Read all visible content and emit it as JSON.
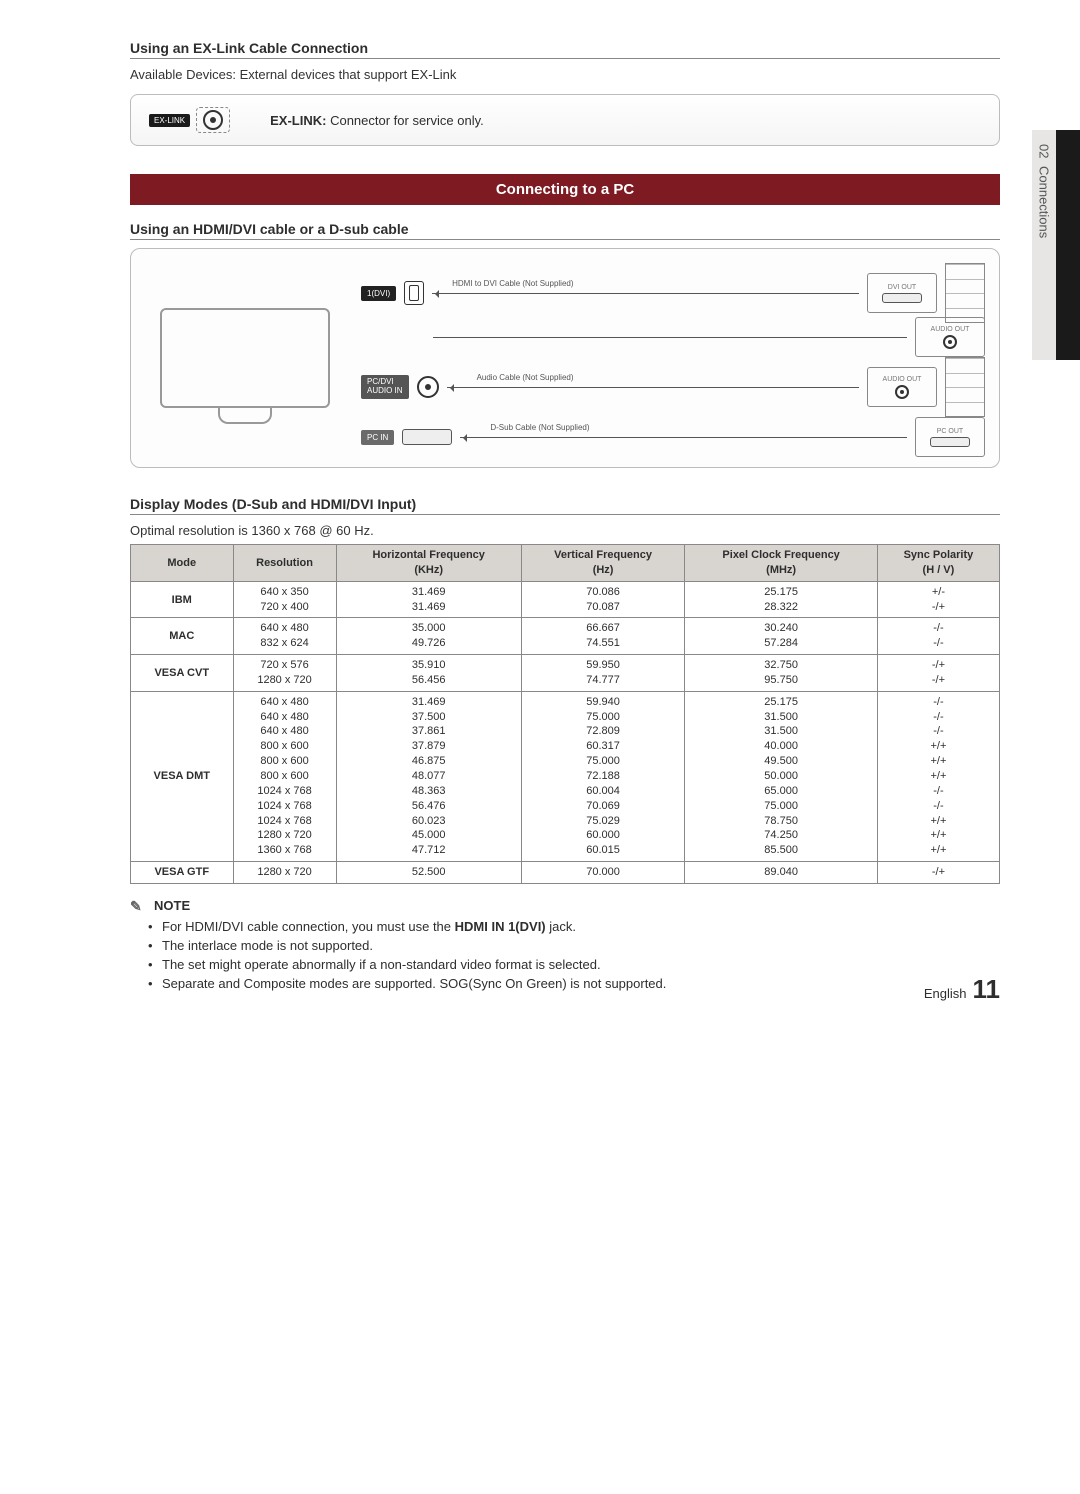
{
  "sideTab": {
    "num": "02",
    "label": "Connections"
  },
  "sec1": {
    "title": "Using an EX-Link Cable Connection",
    "sub": "Available Devices: External devices that support EX-Link",
    "portLabel": "EX-LINK",
    "descBold": "EX-LINK:",
    "descRest": " Connector for service only."
  },
  "banner": "Connecting to a PC",
  "sec2": {
    "title": "Using an HDMI/DVI cable or a D-sub cable"
  },
  "diagram": {
    "hdmiPort": "1(DVI)",
    "pcdvi": "PC/DVI\nAUDIO IN",
    "pcin": "PC IN",
    "hdmiCable": "HDMI to DVI Cable (Not Supplied)",
    "audioCable": "Audio Cable (Not Supplied)",
    "dsubCable": "D-Sub Cable (Not Supplied)",
    "dviout": "DVI OUT",
    "audioout": "AUDIO OUT",
    "audioout2": "AUDIO OUT",
    "pcout": "PC OUT"
  },
  "tableTitle": "Display Modes (D-Sub and HDMI/DVI Input)",
  "tableSub": "Optimal resolution is 1360 x 768 @ 60 Hz.",
  "headers": {
    "mode": "Mode",
    "res": "Resolution",
    "hf": "Horizontal Frequency\n(KHz)",
    "vf": "Vertical Frequency\n(Hz)",
    "pcf": "Pixel Clock Frequency\n(MHz)",
    "sp": "Sync Polarity\n(H / V)"
  },
  "rows": [
    {
      "mode": "IBM",
      "span": 2,
      "r": [
        [
          "640 x 350",
          "31.469",
          "70.086",
          "25.175",
          "+/-"
        ],
        [
          "720 x 400",
          "31.469",
          "70.087",
          "28.322",
          "-/+"
        ]
      ]
    },
    {
      "mode": "MAC",
      "span": 2,
      "r": [
        [
          "640 x 480",
          "35.000",
          "66.667",
          "30.240",
          "-/-"
        ],
        [
          "832 x 624",
          "49.726",
          "74.551",
          "57.284",
          "-/-"
        ]
      ]
    },
    {
      "mode": "VESA CVT",
      "span": 2,
      "r": [
        [
          "720 x 576",
          "35.910",
          "59.950",
          "32.750",
          "-/+"
        ],
        [
          "1280 x 720",
          "56.456",
          "74.777",
          "95.750",
          "-/+"
        ]
      ]
    },
    {
      "mode": "VESA DMT",
      "span": 11,
      "r": [
        [
          "640 x 480",
          "31.469",
          "59.940",
          "25.175",
          "-/-"
        ],
        [
          "640 x 480",
          "37.500",
          "75.000",
          "31.500",
          "-/-"
        ],
        [
          "640 x 480",
          "37.861",
          "72.809",
          "31.500",
          "-/-"
        ],
        [
          "800 x 600",
          "37.879",
          "60.317",
          "40.000",
          "+/+"
        ],
        [
          "800 x 600",
          "46.875",
          "75.000",
          "49.500",
          "+/+"
        ],
        [
          "800 x 600",
          "48.077",
          "72.188",
          "50.000",
          "+/+"
        ],
        [
          "1024 x 768",
          "48.363",
          "60.004",
          "65.000",
          "-/-"
        ],
        [
          "1024 x 768",
          "56.476",
          "70.069",
          "75.000",
          "-/-"
        ],
        [
          "1024 x 768",
          "60.023",
          "75.029",
          "78.750",
          "+/+"
        ],
        [
          "1280 x 720",
          "45.000",
          "60.000",
          "74.250",
          "+/+"
        ],
        [
          "1360 x 768",
          "47.712",
          "60.015",
          "85.500",
          "+/+"
        ]
      ]
    },
    {
      "mode": "VESA GTF",
      "span": 1,
      "r": [
        [
          "1280 x 720",
          "52.500",
          "70.000",
          "89.040",
          "-/+"
        ]
      ]
    }
  ],
  "noteLabel": "NOTE",
  "notes": [
    {
      "pre": "For HDMI/DVI cable connection, you must use the ",
      "bold": "HDMI IN 1(DVI)",
      "post": " jack."
    },
    {
      "pre": "The interlace mode is not supported.",
      "bold": "",
      "post": ""
    },
    {
      "pre": "The set might operate abnormally if a non-standard video format is selected.",
      "bold": "",
      "post": ""
    },
    {
      "pre": "Separate and Composite modes are supported. SOG(Sync On Green) is not supported.",
      "bold": "",
      "post": ""
    }
  ],
  "footer": {
    "lang": "English",
    "page": "11"
  }
}
